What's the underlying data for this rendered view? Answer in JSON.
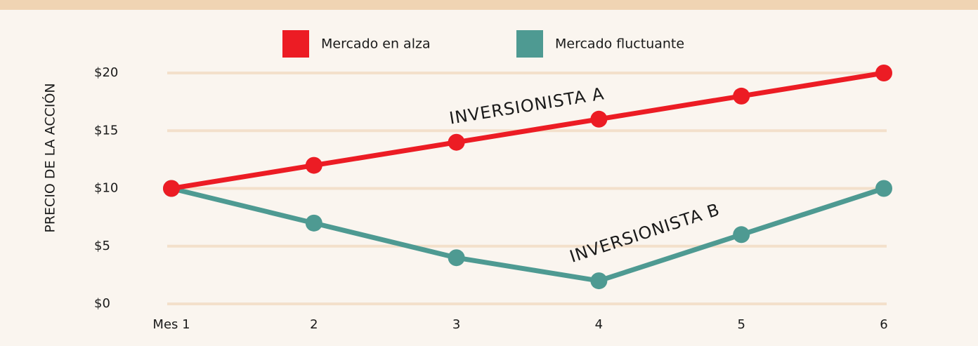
{
  "chart_data": {
    "type": "line",
    "y_label": "PRECIO DE LA ACCIÓN",
    "categories": [
      "Mes 1",
      "2",
      "3",
      "4",
      "5",
      "6"
    ],
    "series": [
      {
        "name": "Mercado en alza",
        "color": "#ec1c24",
        "values": [
          10,
          12,
          14,
          16,
          18,
          20
        ]
      },
      {
        "name": "Mercado fluctuante",
        "color": "#4e9a92",
        "values": [
          10,
          7,
          4,
          2,
          6,
          10
        ]
      }
    ],
    "annotations": [
      {
        "text": "INVERSIONISTA A"
      },
      {
        "text": "INVERSIONISTA B"
      }
    ],
    "ylim": [
      0,
      20
    ],
    "yticks": [
      {
        "value": 0,
        "label": "$0"
      },
      {
        "value": 5,
        "label": "$5"
      },
      {
        "value": 10,
        "label": "$10"
      },
      {
        "value": 15,
        "label": "$15"
      },
      {
        "value": 20,
        "label": "$20"
      }
    ],
    "grid": true
  }
}
